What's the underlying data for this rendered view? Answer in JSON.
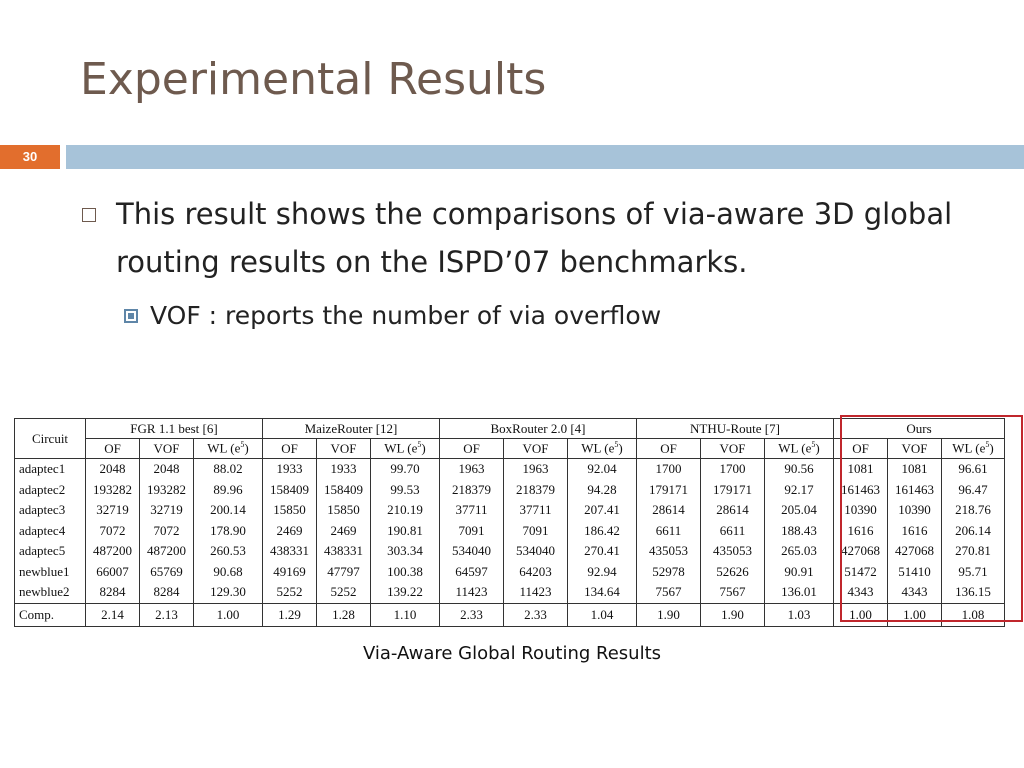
{
  "slide": {
    "title": "Experimental Results",
    "number": "30",
    "bullet1": "This result shows the comparisons of via-aware 3D global routing results on the ISPD’07 benchmarks.",
    "bullet2": "VOF : reports the number of via overflow",
    "caption": "Via-Aware Global Routing Results"
  },
  "table": {
    "circuit_header": "Circuit",
    "groups": [
      "FGR 1.1 best [6]",
      "MaizeRouter [12]",
      "BoxRouter 2.0 [4]",
      "NTHU-Route [7]",
      "Ours"
    ],
    "sub_of": "OF",
    "sub_vof": "VOF",
    "sub_wl": "WL (e",
    "sub_wl_sup": "5",
    "sub_wl_close": ")",
    "rows": [
      {
        "name": "adaptec1",
        "cells": [
          "2048",
          "2048",
          "88.02",
          "1933",
          "1933",
          "99.70",
          "1963",
          "1963",
          "92.04",
          "1700",
          "1700",
          "90.56",
          "1081",
          "1081",
          "96.61"
        ]
      },
      {
        "name": "adaptec2",
        "cells": [
          "193282",
          "193282",
          "89.96",
          "158409",
          "158409",
          "99.53",
          "218379",
          "218379",
          "94.28",
          "179171",
          "179171",
          "92.17",
          "161463",
          "161463",
          "96.47"
        ]
      },
      {
        "name": "adaptec3",
        "cells": [
          "32719",
          "32719",
          "200.14",
          "15850",
          "15850",
          "210.19",
          "37711",
          "37711",
          "207.41",
          "28614",
          "28614",
          "205.04",
          "10390",
          "10390",
          "218.76"
        ]
      },
      {
        "name": "adaptec4",
        "cells": [
          "7072",
          "7072",
          "178.90",
          "2469",
          "2469",
          "190.81",
          "7091",
          "7091",
          "186.42",
          "6611",
          "6611",
          "188.43",
          "1616",
          "1616",
          "206.14"
        ]
      },
      {
        "name": "adaptec5",
        "cells": [
          "487200",
          "487200",
          "260.53",
          "438331",
          "438331",
          "303.34",
          "534040",
          "534040",
          "270.41",
          "435053",
          "435053",
          "265.03",
          "427068",
          "427068",
          "270.81"
        ]
      },
      {
        "name": "newblue1",
        "cells": [
          "66007",
          "65769",
          "90.68",
          "49169",
          "47797",
          "100.38",
          "64597",
          "64203",
          "92.94",
          "52978",
          "52626",
          "90.91",
          "51472",
          "51410",
          "95.71"
        ]
      },
      {
        "name": "newblue2",
        "cells": [
          "8284",
          "8284",
          "129.30",
          "5252",
          "5252",
          "139.22",
          "11423",
          "11423",
          "134.64",
          "7567",
          "7567",
          "136.01",
          "4343",
          "4343",
          "136.15"
        ]
      }
    ],
    "comp": {
      "name": "Comp.",
      "cells": [
        "2.14",
        "2.13",
        "1.00",
        "1.29",
        "1.28",
        "1.10",
        "2.33",
        "2.33",
        "1.04",
        "1.90",
        "1.90",
        "1.03",
        "1.00",
        "1.00",
        "1.08"
      ]
    }
  },
  "colors": {
    "title": "#6e5a4e",
    "number_badge": "#e26e2d",
    "top_bar": "#a7c3d9",
    "highlight": "#c0262c"
  }
}
